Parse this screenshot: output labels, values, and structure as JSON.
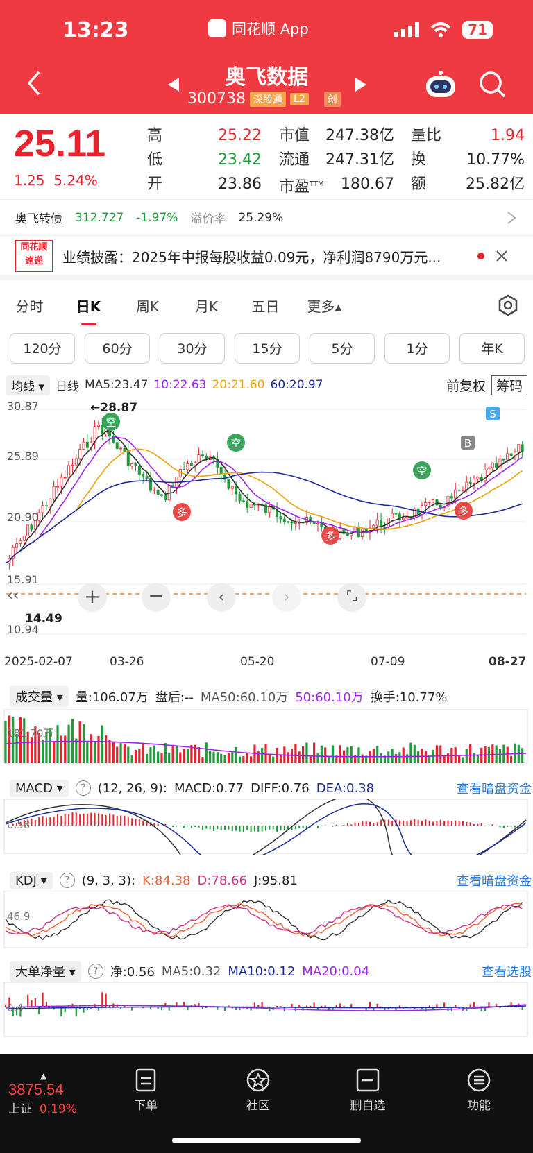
{
  "status": {
    "time": "13:23",
    "app": "同花顺 App",
    "battery": "71"
  },
  "stock": {
    "name": "奥飞数据",
    "code": "300738",
    "tag1": "深股通",
    "tag2": "L2",
    "tag3": "创"
  },
  "quote": {
    "price": "25.11",
    "change": "1.25",
    "change_pct": "5.24%",
    "high_label": "高",
    "high": "25.22",
    "low_label": "低",
    "low": "23.42",
    "open_label": "开",
    "open": "23.86",
    "mcap_label": "市值",
    "mcap": "247.38亿",
    "float_label": "流通",
    "float": "247.31亿",
    "pe_label": "市盈",
    "pe_sup": "TTM",
    "pe": "180.67",
    "vr_label": "量比",
    "vr": "1.94",
    "turn_label": "换",
    "turn": "10.77%",
    "amt_label": "额",
    "amt": "25.82亿"
  },
  "bond": {
    "name": "奥飞转债",
    "price": "312.727",
    "pct": "-1.97%",
    "prem_label": "溢价率",
    "prem": "25.29%"
  },
  "news": {
    "logo1": "同花顺",
    "logo2": "速递",
    "text": "业绩披露：2025年中报每股收益0.09元，净利润8790万元..."
  },
  "tabs": [
    "分时",
    "日K",
    "周K",
    "月K",
    "五日",
    "更多▴"
  ],
  "periods": [
    "120分",
    "60分",
    "30分",
    "15分",
    "5分",
    "1分",
    "年K"
  ],
  "ma": {
    "sel": "均线 ▾",
    "type": "日线",
    "ma5": "MA5:23.47",
    "ma10": "10:22.63",
    "ma20": "20:21.60",
    "ma60": "60:20.97",
    "adj": "前复权",
    "chip": "筹码"
  },
  "kline": {
    "labels": {
      "top": "30.87",
      "p2": "25.89",
      "p3": "20.90",
      "p4": "15.91",
      "bottom": "10.94",
      "peak": "←28.87",
      "low": "14.49"
    },
    "dates": [
      "2025-02-07",
      "03-26",
      "05-20",
      "07-09",
      "08-27"
    ],
    "marks": {
      "kong": "空",
      "duo": "多",
      "b": "B",
      "s": "S"
    }
  },
  "vol": {
    "sel": "成交量 ▾",
    "v": "量:106.07万",
    "after": "盘后:--",
    "ma50": "MA50:60.10万",
    "ma50b": "50:60.10万",
    "turn": "换手:10.77%",
    "axis": "181.70万"
  },
  "macd": {
    "sel": "MACD ▾",
    "params": "(12, 26, 9):",
    "macd": "MACD:0.77",
    "diff": "DIFF:0.76",
    "dea": "DEA:0.38",
    "link": "查看暗盘资金",
    "axis": "0.58"
  },
  "kdj": {
    "sel": "KDJ ▾",
    "params": "(9, 3, 3):",
    "k": "K:84.38",
    "d": "D:78.66",
    "j": "J:95.81",
    "link": "查看暗盘资金",
    "axis": "46.9"
  },
  "big": {
    "sel": "大单净量 ▾",
    "net": "净:0.56",
    "ma5": "MA5:0.32",
    "ma10": "MA10:0.12",
    "ma20": "MA20:0.04",
    "link": "查看选股",
    "axis": "0.4"
  },
  "bottom": {
    "index_val": "3875.54",
    "index_name": "上证",
    "index_pct": "0.19%",
    "order": "下单",
    "community": "社区",
    "delete": "删自选",
    "func": "功能"
  }
}
